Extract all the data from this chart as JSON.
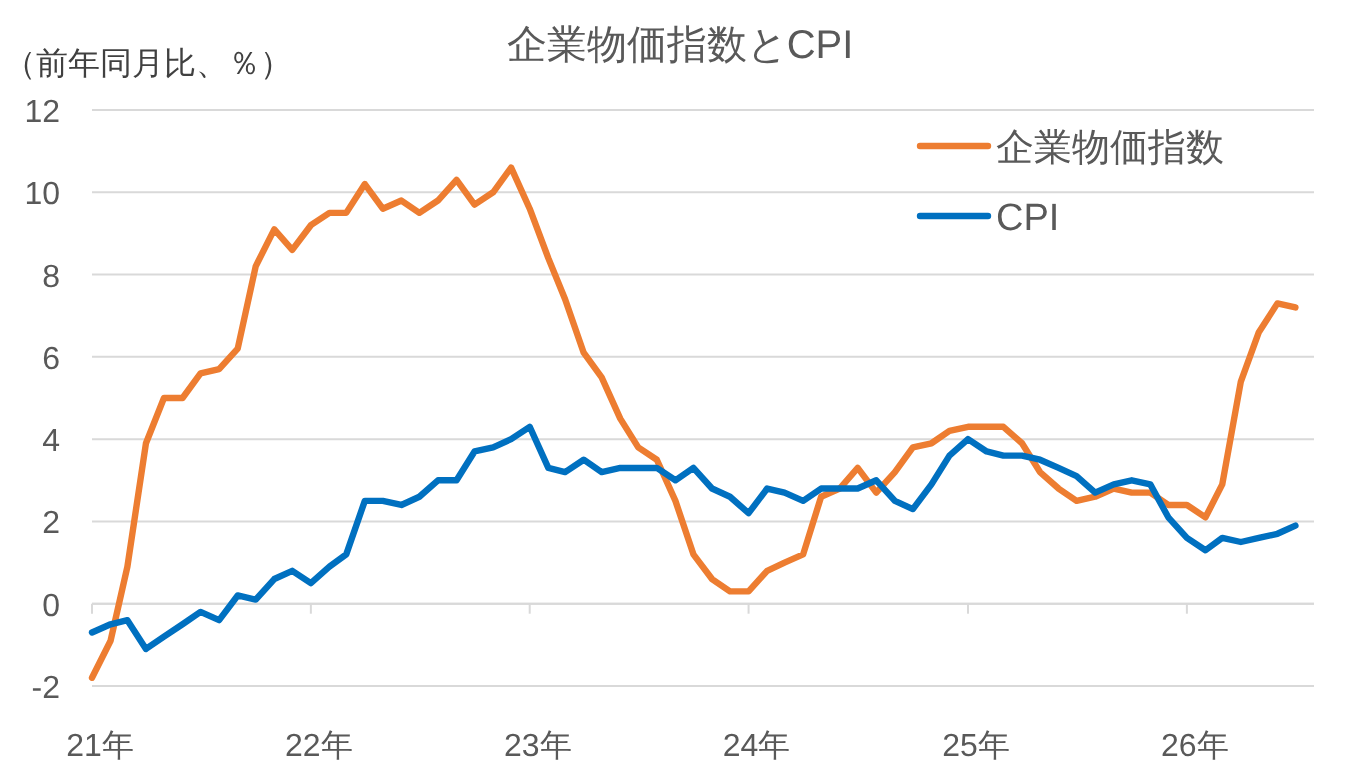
{
  "chart_data": {
    "type": "line",
    "title": "企業物価指数とCPI",
    "ylabel": "（前年同月比、％）",
    "x": [
      "2021-01",
      "2021-02",
      "2021-03",
      "2021-04",
      "2021-05",
      "2021-06",
      "2021-07",
      "2021-08",
      "2021-09",
      "2021-10",
      "2021-11",
      "2021-12",
      "2022-01",
      "2022-02",
      "2022-03",
      "2022-04",
      "2022-05",
      "2022-06",
      "2022-07",
      "2022-08",
      "2022-09",
      "2022-10",
      "2022-11",
      "2022-12",
      "2023-01",
      "2023-02",
      "2023-03",
      "2023-04",
      "2023-05",
      "2023-06",
      "2023-07",
      "2023-08",
      "2023-09",
      "2023-10",
      "2023-11",
      "2023-12",
      "2024-01",
      "2024-02",
      "2024-03",
      "2024-04",
      "2024-05",
      "2024-06",
      "2024-07",
      "2024-08",
      "2024-09",
      "2024-10",
      "2024-11",
      "2024-12",
      "2025-01",
      "2025-02",
      "2025-03",
      "2025-04",
      "2025-05",
      "2025-06",
      "2025-07",
      "2025-08",
      "2025-09",
      "2025-10",
      "2025-11",
      "2025-12",
      "2026-01",
      "2026-02",
      "2026-03",
      "2026-04",
      "2026-05",
      "2026-06",
      "2026-07"
    ],
    "series": [
      {
        "name": "企業物価指数",
        "color": "#ed7d31",
        "values": [
          -1.8,
          -0.9,
          0.9,
          3.9,
          5.0,
          5.0,
          5.6,
          5.7,
          6.2,
          8.2,
          9.1,
          8.6,
          9.2,
          9.5,
          9.5,
          10.2,
          9.6,
          9.8,
          9.5,
          9.8,
          10.3,
          9.7,
          10.0,
          10.6,
          9.6,
          8.4,
          7.4,
          6.1,
          5.5,
          4.5,
          3.8,
          3.5,
          2.5,
          1.2,
          0.6,
          0.3,
          0.3,
          0.8,
          1.0,
          1.2,
          2.6,
          2.8,
          3.3,
          2.7,
          3.2,
          3.8,
          3.9,
          4.2,
          4.3,
          4.3,
          4.3,
          3.9,
          3.2,
          2.8,
          2.5,
          2.6,
          2.8,
          2.7,
          2.7,
          2.4,
          2.4,
          2.1,
          2.9,
          5.4,
          6.6,
          7.3,
          7.2
        ]
      },
      {
        "name": "CPI",
        "color": "#0070c0",
        "values": [
          -0.7,
          -0.5,
          -0.4,
          -1.1,
          -0.8,
          -0.5,
          -0.2,
          -0.4,
          0.2,
          0.1,
          0.6,
          0.8,
          0.5,
          0.9,
          1.2,
          2.5,
          2.5,
          2.4,
          2.6,
          3.0,
          3.0,
          3.7,
          3.8,
          4.0,
          4.3,
          3.3,
          3.2,
          3.5,
          3.2,
          3.3,
          3.3,
          3.3,
          3.0,
          3.3,
          2.8,
          2.6,
          2.2,
          2.8,
          2.7,
          2.5,
          2.8,
          2.8,
          2.8,
          3.0,
          2.5,
          2.3,
          2.9,
          3.6,
          4.0,
          3.7,
          3.6,
          3.6,
          3.5,
          3.3,
          3.1,
          2.7,
          2.9,
          3.0,
          2.9,
          2.1,
          1.6,
          1.3,
          1.6,
          1.5,
          1.6,
          1.7,
          1.9
        ]
      }
    ],
    "xlim": [
      "2021-01",
      "2026-08"
    ],
    "xticks": [
      {
        "value": "2021-01",
        "label": "21年"
      },
      {
        "value": "2022-01",
        "label": "22年"
      },
      {
        "value": "2023-01",
        "label": "23年"
      },
      {
        "value": "2024-01",
        "label": "24年"
      },
      {
        "value": "2025-01",
        "label": "25年"
      },
      {
        "value": "2026-01",
        "label": "26年"
      }
    ],
    "ylim": [
      -2,
      12
    ],
    "yticks": [
      -2,
      0,
      2,
      4,
      6,
      8,
      10,
      12
    ],
    "grid": "y",
    "legend": "top right",
    "line_style": "solid",
    "marker": "none"
  }
}
